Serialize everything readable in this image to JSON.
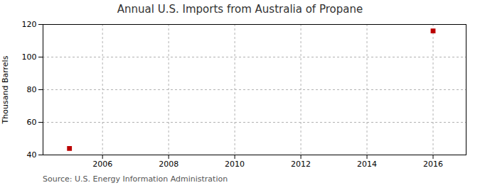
{
  "chart_data": {
    "type": "scatter",
    "title": "Annual U.S. Imports from Australia of Propane",
    "ylabel": "Thousand Barrels",
    "source": "Source: U.S. Energy Information Administration",
    "x": [
      2005,
      2016
    ],
    "values": [
      44,
      116
    ],
    "color": "#bb0000",
    "marker": "square",
    "xlim": [
      2004.2,
      2017.0
    ],
    "ylim": [
      40,
      120
    ],
    "xticks": [
      2006,
      2008,
      2010,
      2012,
      2014,
      2016
    ],
    "yticks": [
      40,
      60,
      80,
      100,
      120
    ],
    "grid": true
  }
}
